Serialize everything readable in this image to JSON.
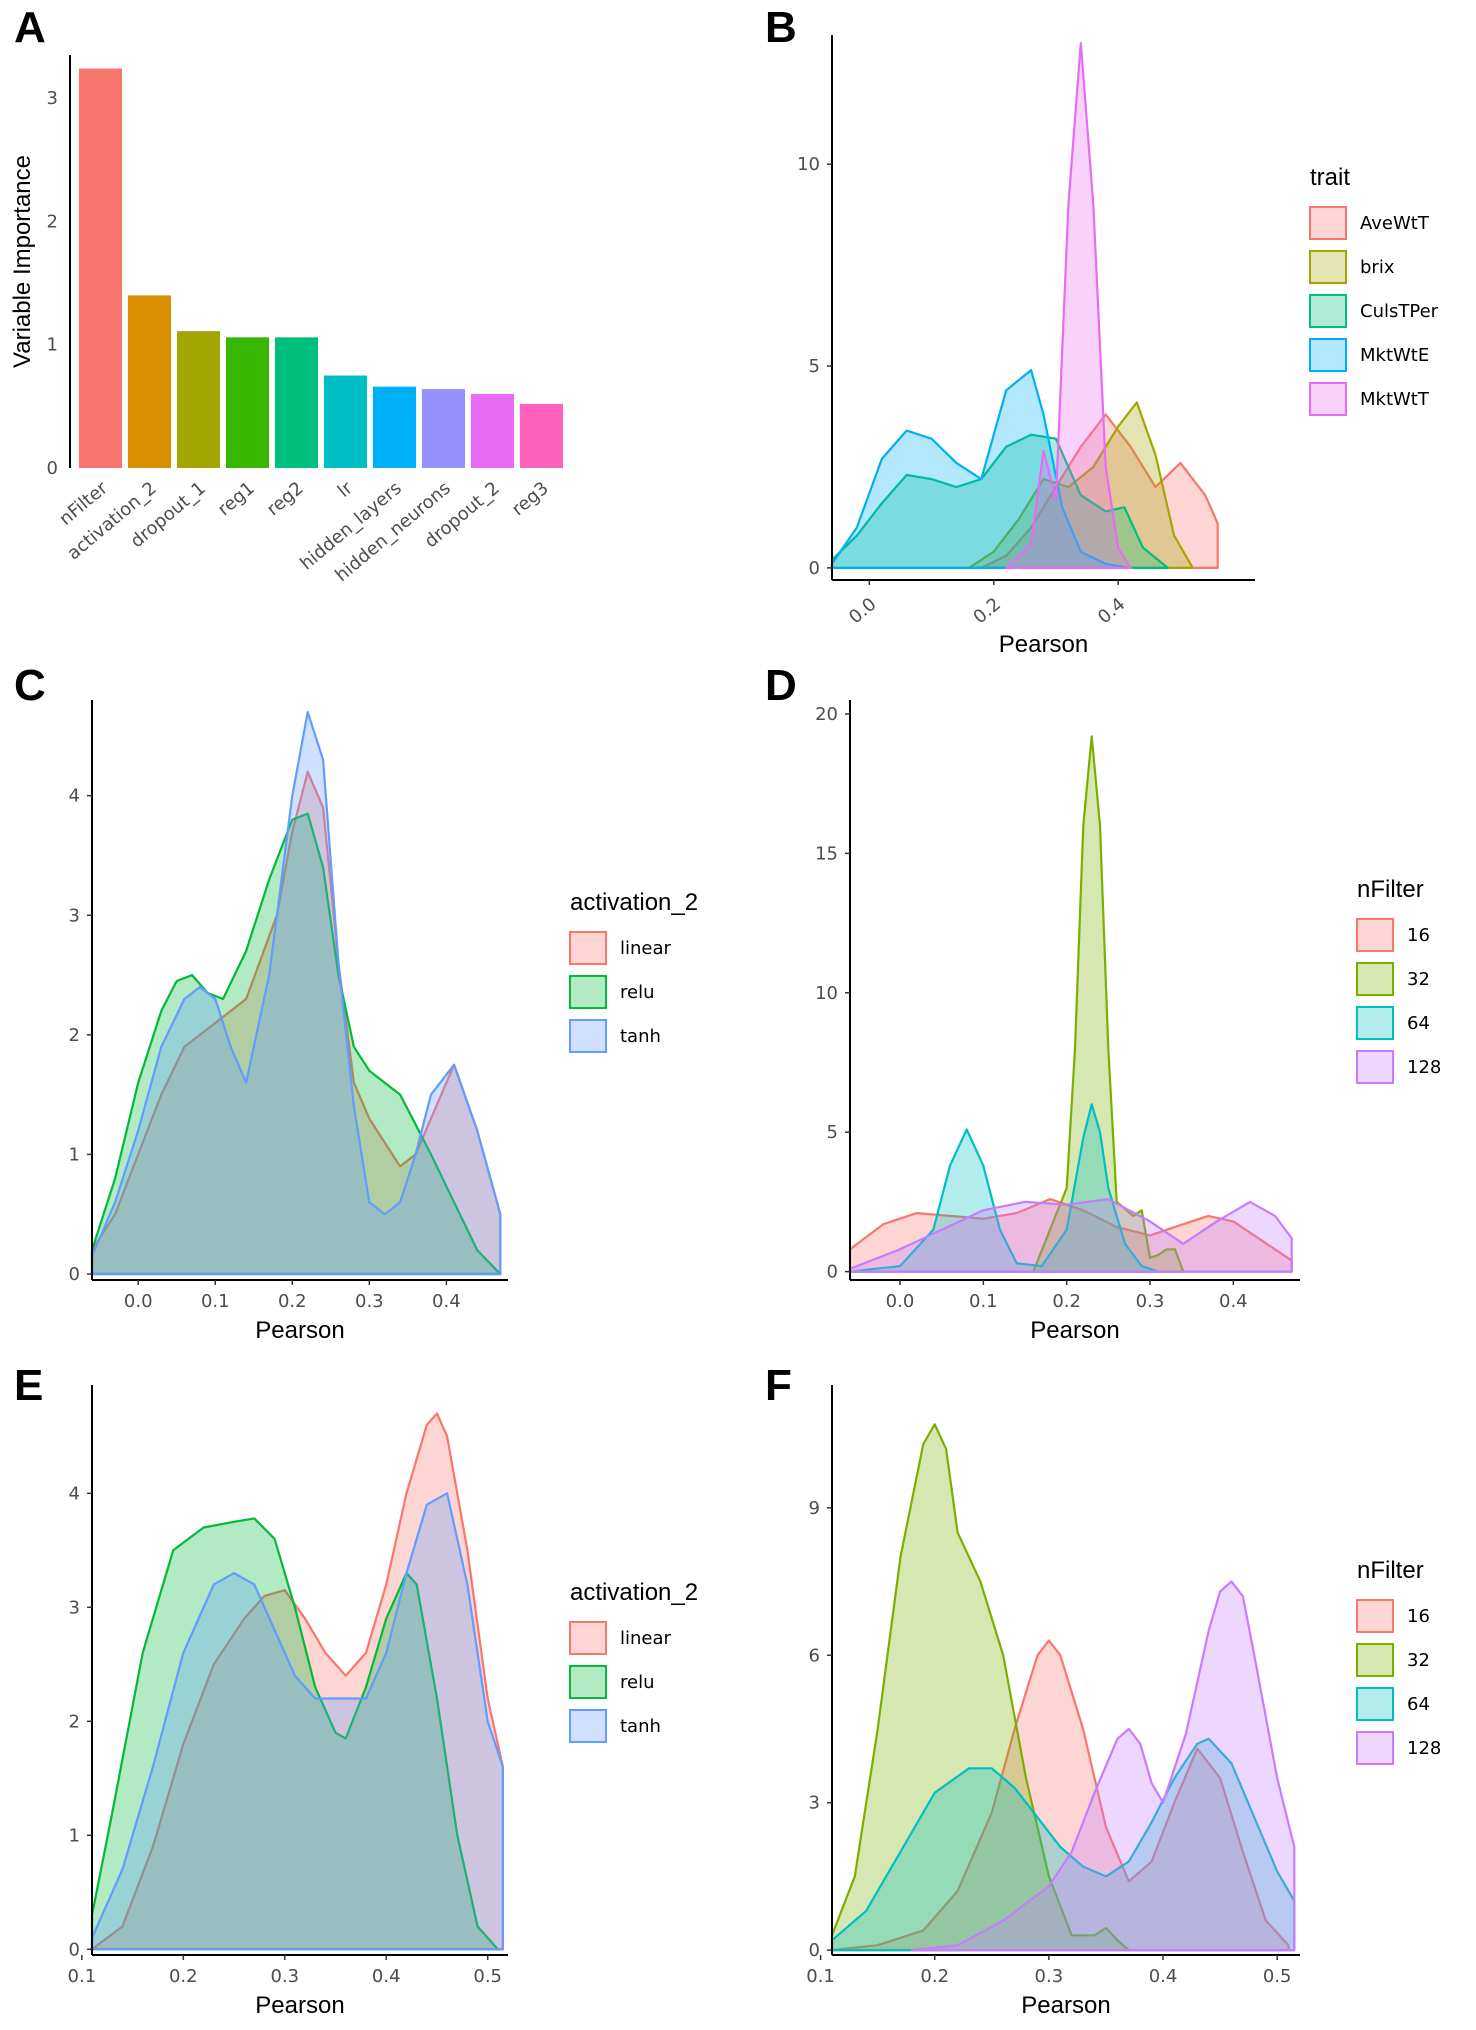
{
  "figure": {
    "panels": [
      "A",
      "B",
      "C",
      "D",
      "E",
      "F"
    ]
  },
  "chart_data": [
    {
      "panel": "A",
      "type": "bar",
      "title": "",
      "xlabel": "",
      "ylabel": "Variable Importance",
      "categories": [
        "nFilter",
        "activation_2",
        "dropout_1",
        "reg1",
        "reg2",
        "lr",
        "hidden_layers",
        "hidden_neurons",
        "dropout_2",
        "reg3"
      ],
      "values": [
        3.24,
        1.4,
        1.11,
        1.06,
        1.06,
        0.75,
        0.66,
        0.64,
        0.6,
        0.52
      ],
      "colors": [
        "#F8766D",
        "#D89000",
        "#A3A500",
        "#39B600",
        "#00BF7D",
        "#00BFC4",
        "#00B0F6",
        "#9590FF",
        "#E76BF3",
        "#FF62BC"
      ],
      "ylim": [
        0,
        3.35
      ],
      "yticks": [
        0,
        1,
        2,
        3
      ],
      "ytick_labels": [
        "0",
        "1",
        "2",
        "3"
      ]
    },
    {
      "panel": "B",
      "type": "area",
      "xlabel": "Pearson",
      "ylabel": "",
      "xlim": [
        -0.06,
        0.62
      ],
      "ylim": [
        -0.3,
        13.2
      ],
      "xticks": [
        0.0,
        0.2,
        0.4
      ],
      "xtick_labels": [
        "0.0",
        "0.2",
        "0.4"
      ],
      "yticks": [
        0,
        5,
        10
      ],
      "ytick_labels": [
        "0",
        "5",
        "10"
      ],
      "legend_title": "trait",
      "series": [
        {
          "name": "AveWtT",
          "color": "#F8766D",
          "x": [
            0.18,
            0.22,
            0.26,
            0.3,
            0.34,
            0.38,
            0.42,
            0.46,
            0.5,
            0.54,
            0.56
          ],
          "y": [
            0,
            0.3,
            1.0,
            2.0,
            3.0,
            3.8,
            3.0,
            2.0,
            2.6,
            1.8,
            1.1
          ]
        },
        {
          "name": "brix",
          "color": "#A3A500",
          "x": [
            0.16,
            0.2,
            0.24,
            0.28,
            0.32,
            0.36,
            0.4,
            0.43,
            0.46,
            0.49,
            0.52
          ],
          "y": [
            0,
            0.4,
            1.2,
            2.2,
            2.0,
            2.5,
            3.5,
            4.1,
            2.8,
            0.8,
            0
          ]
        },
        {
          "name": "CulsTPer",
          "color": "#00BF7D",
          "x": [
            -0.06,
            -0.02,
            0.02,
            0.06,
            0.1,
            0.14,
            0.18,
            0.22,
            0.26,
            0.3,
            0.34,
            0.38,
            0.41,
            0.44,
            0.48
          ],
          "y": [
            0.2,
            0.8,
            1.6,
            2.3,
            2.2,
            2.0,
            2.2,
            3.0,
            3.3,
            3.2,
            1.8,
            1.4,
            1.5,
            0.5,
            0
          ]
        },
        {
          "name": "MktWtE",
          "color": "#00B0F6",
          "x": [
            -0.06,
            -0.02,
            0.02,
            0.06,
            0.1,
            0.14,
            0.18,
            0.22,
            0.26,
            0.28,
            0.31,
            0.34,
            0.38,
            0.42
          ],
          "y": [
            0.1,
            1.0,
            2.7,
            3.4,
            3.2,
            2.6,
            2.2,
            4.4,
            4.9,
            3.8,
            1.5,
            0.4,
            0.1,
            0
          ]
        },
        {
          "name": "MktWtT",
          "color": "#E76BF3",
          "x": [
            0.22,
            0.26,
            0.28,
            0.3,
            0.32,
            0.34,
            0.36,
            0.38,
            0.4,
            0.42
          ],
          "y": [
            0,
            0.6,
            2.9,
            1.7,
            9.0,
            13.0,
            9.0,
            2.5,
            0.5,
            0
          ]
        }
      ]
    },
    {
      "panel": "C",
      "type": "area",
      "xlabel": "Pearson",
      "ylabel": "",
      "xlim": [
        -0.06,
        0.48
      ],
      "ylim": [
        -0.05,
        4.8
      ],
      "xticks": [
        0.0,
        0.1,
        0.2,
        0.3,
        0.4
      ],
      "xtick_labels": [
        "0.0",
        "0.1",
        "0.2",
        "0.3",
        "0.4"
      ],
      "yticks": [
        0,
        1,
        2,
        3,
        4
      ],
      "ytick_labels": [
        "0",
        "1",
        "2",
        "3",
        "4"
      ],
      "legend_title": "activation_2",
      "series": [
        {
          "name": "linear",
          "color": "#F8766D",
          "x": [
            -0.06,
            -0.03,
            0.0,
            0.03,
            0.06,
            0.1,
            0.14,
            0.18,
            0.2,
            0.22,
            0.24,
            0.26,
            0.28,
            0.3,
            0.32,
            0.34,
            0.36,
            0.38,
            0.41,
            0.44,
            0.47
          ],
          "y": [
            0.2,
            0.5,
            1.0,
            1.5,
            1.9,
            2.1,
            2.3,
            3.0,
            3.7,
            4.2,
            3.9,
            2.6,
            1.6,
            1.3,
            1.1,
            0.9,
            1.0,
            1.3,
            1.75,
            1.2,
            0.5
          ]
        },
        {
          "name": "relu",
          "color": "#00BA38",
          "x": [
            -0.06,
            -0.03,
            0.0,
            0.03,
            0.05,
            0.07,
            0.09,
            0.11,
            0.14,
            0.17,
            0.2,
            0.22,
            0.24,
            0.26,
            0.28,
            0.3,
            0.32,
            0.34,
            0.36,
            0.38,
            0.41,
            0.44,
            0.47
          ],
          "y": [
            0.2,
            0.8,
            1.6,
            2.2,
            2.45,
            2.5,
            2.35,
            2.3,
            2.7,
            3.3,
            3.8,
            3.85,
            3.4,
            2.5,
            1.9,
            1.7,
            1.6,
            1.5,
            1.25,
            1.0,
            0.6,
            0.2,
            0
          ]
        },
        {
          "name": "tanh",
          "color": "#619CFF",
          "x": [
            -0.06,
            -0.03,
            0.0,
            0.03,
            0.06,
            0.08,
            0.1,
            0.12,
            0.14,
            0.17,
            0.2,
            0.22,
            0.24,
            0.26,
            0.28,
            0.3,
            0.32,
            0.34,
            0.36,
            0.38,
            0.41,
            0.44,
            0.47
          ],
          "y": [
            0.15,
            0.6,
            1.2,
            1.9,
            2.3,
            2.4,
            2.3,
            1.9,
            1.6,
            2.5,
            4.0,
            4.7,
            4.3,
            2.6,
            1.4,
            0.6,
            0.5,
            0.6,
            1.0,
            1.5,
            1.75,
            1.2,
            0.5
          ]
        }
      ]
    },
    {
      "panel": "D",
      "type": "area",
      "xlabel": "Pearson",
      "ylabel": "",
      "xlim": [
        -0.06,
        0.48
      ],
      "ylim": [
        -0.3,
        20.5
      ],
      "xticks": [
        0.0,
        0.1,
        0.2,
        0.3,
        0.4
      ],
      "xtick_labels": [
        "0.0",
        "0.1",
        "0.2",
        "0.3",
        "0.4"
      ],
      "yticks": [
        0,
        5,
        10,
        15,
        20
      ],
      "ytick_labels": [
        "0",
        "5",
        "10",
        "15",
        "20"
      ],
      "legend_title": "nFilter",
      "series": [
        {
          "name": "16",
          "color": "#F8766D",
          "x": [
            -0.06,
            -0.02,
            0.02,
            0.06,
            0.1,
            0.14,
            0.18,
            0.22,
            0.26,
            0.3,
            0.34,
            0.37,
            0.4,
            0.44,
            0.47
          ],
          "y": [
            0.8,
            1.7,
            2.1,
            2.0,
            1.9,
            2.1,
            2.6,
            2.2,
            1.6,
            1.3,
            1.7,
            2.0,
            1.8,
            1.0,
            0.4
          ]
        },
        {
          "name": "32",
          "color": "#7CAE00",
          "x": [
            0.16,
            0.18,
            0.2,
            0.21,
            0.22,
            0.23,
            0.24,
            0.25,
            0.26,
            0.28,
            0.29,
            0.3,
            0.31,
            0.32,
            0.33,
            0.34
          ],
          "y": [
            0,
            1.5,
            3.0,
            8.0,
            16.0,
            19.2,
            16.0,
            8.0,
            2.5,
            2.0,
            2.2,
            0.5,
            0.6,
            0.8,
            0.8,
            0
          ]
        },
        {
          "name": "64",
          "color": "#00BFC4",
          "x": [
            -0.06,
            0.0,
            0.04,
            0.06,
            0.08,
            0.1,
            0.12,
            0.14,
            0.17,
            0.2,
            0.22,
            0.23,
            0.24,
            0.25,
            0.27,
            0.29,
            0.31
          ],
          "y": [
            0,
            0.2,
            1.5,
            3.8,
            5.1,
            3.8,
            1.5,
            0.3,
            0.2,
            1.5,
            4.8,
            6.0,
            5.0,
            3.0,
            1.0,
            0.2,
            0
          ]
        },
        {
          "name": "128",
          "color": "#C77CFF",
          "x": [
            -0.06,
            0.0,
            0.05,
            0.1,
            0.15,
            0.2,
            0.25,
            0.3,
            0.34,
            0.38,
            0.42,
            0.45,
            0.47
          ],
          "y": [
            0.1,
            0.8,
            1.5,
            2.2,
            2.5,
            2.4,
            2.6,
            1.8,
            1.0,
            1.8,
            2.5,
            2.0,
            1.2
          ]
        }
      ]
    },
    {
      "panel": "E",
      "type": "area",
      "xlabel": "Pearson",
      "ylabel": "",
      "xlim": [
        0.11,
        0.52
      ],
      "ylim": [
        -0.05,
        4.95
      ],
      "xticks": [
        0.1,
        0.2,
        0.3,
        0.4,
        0.5
      ],
      "xtick_labels": [
        "0.1",
        "0.2",
        "0.3",
        "0.4",
        "0.5"
      ],
      "yticks": [
        0,
        1,
        2,
        3,
        4
      ],
      "ytick_labels": [
        "0",
        "1",
        "2",
        "3",
        "4"
      ],
      "legend_title": "activation_2",
      "series": [
        {
          "name": "linear",
          "color": "#F8766D",
          "x": [
            0.11,
            0.14,
            0.17,
            0.2,
            0.23,
            0.26,
            0.28,
            0.3,
            0.32,
            0.34,
            0.36,
            0.38,
            0.4,
            0.42,
            0.44,
            0.45,
            0.46,
            0.48,
            0.5,
            0.515
          ],
          "y": [
            0,
            0.2,
            0.9,
            1.8,
            2.5,
            2.9,
            3.1,
            3.15,
            2.9,
            2.6,
            2.4,
            2.6,
            3.2,
            4.0,
            4.6,
            4.7,
            4.5,
            3.5,
            2.2,
            1.6
          ]
        },
        {
          "name": "relu",
          "color": "#00BA38",
          "x": [
            0.11,
            0.13,
            0.16,
            0.19,
            0.22,
            0.25,
            0.27,
            0.29,
            0.31,
            0.33,
            0.35,
            0.36,
            0.38,
            0.4,
            0.42,
            0.43,
            0.45,
            0.47,
            0.49,
            0.51
          ],
          "y": [
            0.3,
            1.2,
            2.6,
            3.5,
            3.7,
            3.75,
            3.78,
            3.6,
            3.0,
            2.3,
            1.9,
            1.85,
            2.3,
            2.9,
            3.3,
            3.2,
            2.2,
            1.0,
            0.2,
            0
          ]
        },
        {
          "name": "tanh",
          "color": "#619CFF",
          "x": [
            0.11,
            0.14,
            0.17,
            0.2,
            0.23,
            0.25,
            0.27,
            0.29,
            0.31,
            0.33,
            0.35,
            0.38,
            0.4,
            0.42,
            0.44,
            0.46,
            0.48,
            0.5,
            0.515
          ],
          "y": [
            0.1,
            0.7,
            1.6,
            2.6,
            3.2,
            3.3,
            3.2,
            2.8,
            2.4,
            2.2,
            2.2,
            2.2,
            2.6,
            3.3,
            3.9,
            4.0,
            3.2,
            2.0,
            1.6
          ]
        }
      ]
    },
    {
      "panel": "F",
      "type": "area",
      "xlabel": "Pearson",
      "ylabel": "",
      "xlim": [
        0.11,
        0.52
      ],
      "ylim": [
        -0.1,
        11.5
      ],
      "xticks": [
        0.1,
        0.2,
        0.3,
        0.4,
        0.5
      ],
      "xtick_labels": [
        "0.1",
        "0.2",
        "0.3",
        "0.4",
        "0.5"
      ],
      "yticks": [
        0,
        3,
        6,
        9
      ],
      "ytick_labels": [
        "0",
        "3",
        "6",
        "9"
      ],
      "legend_title": "nFilter",
      "series": [
        {
          "name": "16",
          "color": "#F8766D",
          "x": [
            0.11,
            0.15,
            0.19,
            0.22,
            0.25,
            0.27,
            0.29,
            0.3,
            0.31,
            0.33,
            0.35,
            0.37,
            0.39,
            0.41,
            0.43,
            0.45,
            0.47,
            0.49,
            0.51
          ],
          "y": [
            0,
            0.1,
            0.4,
            1.2,
            2.8,
            4.5,
            6.0,
            6.3,
            6.0,
            4.5,
            2.5,
            1.4,
            1.8,
            3.0,
            4.1,
            3.5,
            2.0,
            0.6,
            0.1
          ]
        },
        {
          "name": "32",
          "color": "#7CAE00",
          "x": [
            0.11,
            0.13,
            0.15,
            0.17,
            0.19,
            0.2,
            0.21,
            0.22,
            0.24,
            0.26,
            0.28,
            0.3,
            0.32,
            0.34,
            0.35,
            0.36,
            0.37
          ],
          "y": [
            0.3,
            1.5,
            4.5,
            8.0,
            10.3,
            10.7,
            10.2,
            8.5,
            7.5,
            6.0,
            3.5,
            1.5,
            0.3,
            0.3,
            0.45,
            0.2,
            0
          ]
        },
        {
          "name": "64",
          "color": "#00BFC4",
          "x": [
            0.11,
            0.14,
            0.17,
            0.2,
            0.23,
            0.25,
            0.27,
            0.29,
            0.31,
            0.33,
            0.35,
            0.37,
            0.39,
            0.41,
            0.43,
            0.44,
            0.46,
            0.48,
            0.5,
            0.515
          ],
          "y": [
            0.2,
            0.8,
            2.0,
            3.2,
            3.7,
            3.7,
            3.3,
            2.7,
            2.1,
            1.7,
            1.5,
            1.8,
            2.6,
            3.5,
            4.2,
            4.3,
            3.8,
            2.7,
            1.6,
            1.0
          ]
        },
        {
          "name": "128",
          "color": "#C77CFF",
          "x": [
            0.18,
            0.22,
            0.26,
            0.3,
            0.32,
            0.34,
            0.36,
            0.37,
            0.38,
            0.39,
            0.4,
            0.42,
            0.44,
            0.45,
            0.46,
            0.47,
            0.48,
            0.5,
            0.515
          ],
          "y": [
            0,
            0.1,
            0.6,
            1.3,
            2.0,
            3.2,
            4.3,
            4.5,
            4.2,
            3.4,
            3.0,
            4.4,
            6.5,
            7.3,
            7.5,
            7.2,
            6.0,
            3.5,
            2.1
          ]
        }
      ]
    }
  ]
}
